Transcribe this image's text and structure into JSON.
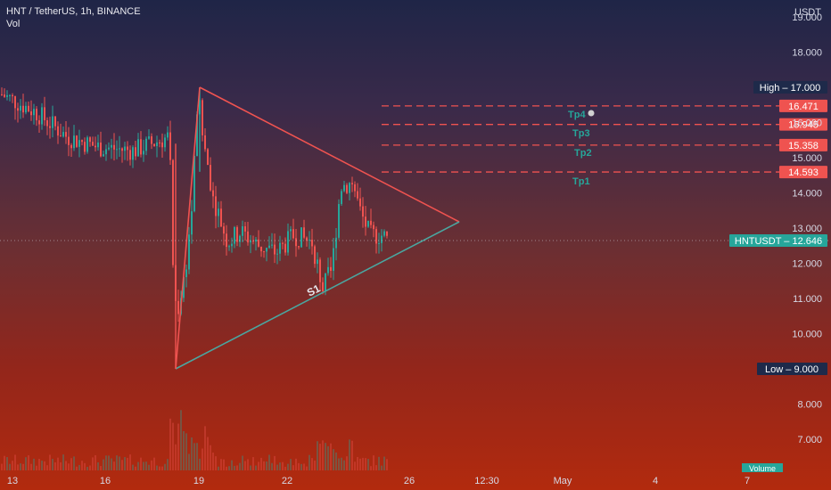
{
  "header": {
    "symbol_line": "HNT / TetherUS, 1h, BINANCE",
    "volume_label": "Vol"
  },
  "colors": {
    "up": "#26a69a",
    "down": "#ef5350",
    "axis_text": "#d6d9e6",
    "target_line": "#ef5350",
    "target_label": "#26a69a",
    "triangle_upper": "#ef5350",
    "triangle_lower": "#4aa6a0",
    "price_badge": "#26a69a",
    "low_badge": "#1e2a4a",
    "high_badge": "#1e2a4a"
  },
  "chart_data": {
    "type": "candlestick",
    "title": "HNT / TetherUS, 1h, BINANCE",
    "currency": "USDT",
    "ylim": [
      6.2,
      19.7
    ],
    "y_ticks": [
      "19.000",
      "18.000",
      "17.000",
      "16.000",
      "15.000",
      "14.000",
      "13.000",
      "12.000",
      "11.000",
      "10.000",
      "8.000",
      "7.000"
    ],
    "x_ticks": [
      "13",
      "16",
      "19",
      "22",
      "26",
      "12:30",
      "May",
      "4",
      "7"
    ],
    "last_price": {
      "label": "HNTUSDT",
      "value": "12.646",
      "y": 12.646
    },
    "high": {
      "label": "High",
      "value": "17.000",
      "y": 17.0
    },
    "low": {
      "label": "Low",
      "value": "9.000",
      "y": 9.0
    },
    "targets": [
      {
        "name": "Tp4",
        "value": "16.471",
        "y": 16.471
      },
      {
        "name": "Tp3",
        "value": "15.945",
        "y": 15.945
      },
      {
        "name": "Tp2",
        "value": "15.358",
        "y": 15.358
      },
      {
        "name": "Tp1",
        "value": "14.593",
        "y": 14.593
      }
    ],
    "annotation": "S1",
    "volume_label": "Volume",
    "price_path": [
      {
        "t": "13",
        "price": 16.8
      },
      {
        "t": "14",
        "price": 16.3
      },
      {
        "t": "15",
        "price": 15.8
      },
      {
        "t": "16",
        "price": 15.2
      },
      {
        "t": "17",
        "price": 15.0
      },
      {
        "t": "18",
        "price": 15.5
      },
      {
        "t": "18 late",
        "price": 9.0
      },
      {
        "t": "19",
        "price": 17.0
      },
      {
        "t": "20",
        "price": 13.0
      },
      {
        "t": "21",
        "price": 12.6
      },
      {
        "t": "22",
        "price": 12.7
      },
      {
        "t": "23",
        "price": 11.2
      },
      {
        "t": "24",
        "price": 14.5
      },
      {
        "t": "25",
        "price": 12.646
      }
    ]
  }
}
